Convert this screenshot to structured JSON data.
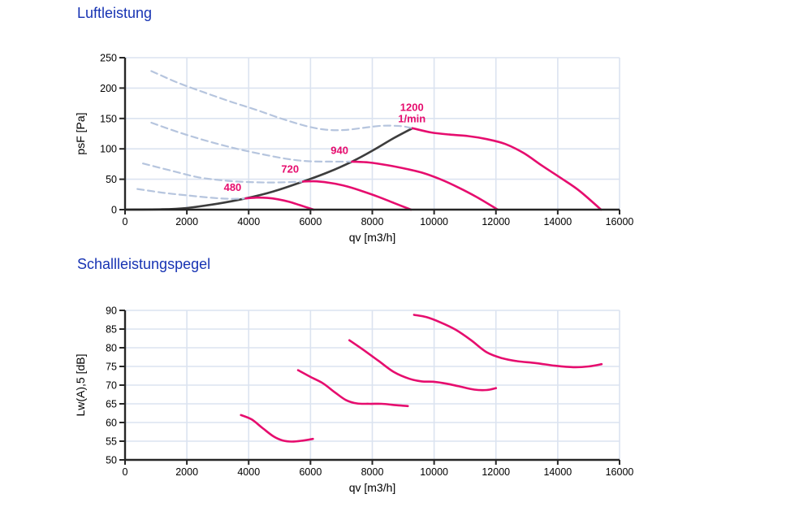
{
  "colors": {
    "title": "#1733b3",
    "magenta": "#e60d6e",
    "dark": "#3d3d3d",
    "lightblue": "#b6c5de",
    "grid": "#dbe3f0",
    "axis": "#262626",
    "tick_text": "#000000"
  },
  "chart_data": [
    {
      "type": "line",
      "title": "Luftleistung",
      "xlabel": "qv [m3/h]",
      "ylabel": "psF [Pa]",
      "xlim": [
        0,
        16000
      ],
      "ylim": [
        0,
        250
      ],
      "xticks": [
        0,
        2000,
        4000,
        6000,
        8000,
        10000,
        12000,
        14000,
        16000
      ],
      "yticks": [
        0,
        50,
        100,
        150,
        200,
        250
      ],
      "grid": true,
      "legend": "none",
      "series": [
        {
          "name": "system-limit-curve",
          "style": "solid",
          "color": "dark",
          "width": 2.6,
          "points": [
            [
              0,
              0
            ],
            [
              1200,
              0.5
            ],
            [
              2000,
              2.7
            ],
            [
              3000,
              9.8
            ],
            [
              3900,
              18.4
            ],
            [
              4800,
              29.9
            ],
            [
              5760,
              46.3
            ],
            [
              6600,
              62.1
            ],
            [
              7340,
              79
            ],
            [
              8000,
              96.9
            ],
            [
              8700,
              117.8
            ],
            [
              9300,
              134
            ]
          ]
        },
        {
          "name": "fan-480-unstable-dashed",
          "style": "dashed",
          "color": "lightblue",
          "width": 2.2,
          "points": [
            [
              400,
              34
            ],
            [
              1200,
              28
            ],
            [
              2000,
              23.5
            ],
            [
              2800,
              19.5
            ],
            [
              3400,
              17.8
            ],
            [
              3900,
              18.4
            ]
          ]
        },
        {
          "name": "fan-720-unstable-dashed",
          "style": "dashed",
          "color": "lightblue",
          "width": 2.2,
          "points": [
            [
              580,
              76
            ],
            [
              1500,
              64
            ],
            [
              2400,
              53
            ],
            [
              3300,
              47.5
            ],
            [
              4200,
              45
            ],
            [
              5000,
              44.8
            ],
            [
              5760,
              46.3
            ]
          ]
        },
        {
          "name": "fan-940-unstable-dashed",
          "style": "dashed",
          "color": "lightblue",
          "width": 2.2,
          "points": [
            [
              850,
              143
            ],
            [
              1750,
              127
            ],
            [
              2650,
              113
            ],
            [
              3550,
              101
            ],
            [
              4450,
              91
            ],
            [
              5300,
              83
            ],
            [
              5950,
              79.5
            ],
            [
              6650,
              79
            ],
            [
              7340,
              79
            ]
          ]
        },
        {
          "name": "fan-1200-unstable-dashed",
          "style": "dashed",
          "color": "lightblue",
          "width": 2.2,
          "points": [
            [
              850,
              228
            ],
            [
              1700,
              209
            ],
            [
              2550,
              193
            ],
            [
              3400,
              178
            ],
            [
              4250,
              164
            ],
            [
              5100,
              149
            ],
            [
              5900,
              137
            ],
            [
              6500,
              131.5
            ],
            [
              7100,
              131
            ],
            [
              7700,
              134.5
            ],
            [
              8300,
              138
            ],
            [
              8900,
              137.5
            ],
            [
              9300,
              134
            ]
          ]
        },
        {
          "name": "fan-480",
          "style": "solid",
          "color": "magenta",
          "width": 2.6,
          "points": [
            [
              3900,
              18.4
            ],
            [
              4250,
              19.8
            ],
            [
              4600,
              19.3
            ],
            [
              4950,
              17
            ],
            [
              5300,
              13
            ],
            [
              5650,
              7.5
            ],
            [
              6100,
              0
            ]
          ]
        },
        {
          "name": "fan-720",
          "style": "solid",
          "color": "magenta",
          "width": 2.6,
          "points": [
            [
              5760,
              46.3
            ],
            [
              6200,
              46.5
            ],
            [
              6700,
              43.5
            ],
            [
              7200,
              38
            ],
            [
              7700,
              30
            ],
            [
              8200,
              21
            ],
            [
              8700,
              11
            ],
            [
              9250,
              0
            ]
          ]
        },
        {
          "name": "fan-940",
          "style": "solid",
          "color": "magenta",
          "width": 2.6,
          "points": [
            [
              7340,
              79
            ],
            [
              7900,
              77.5
            ],
            [
              8500,
              73
            ],
            [
              9100,
              67
            ],
            [
              9600,
              61
            ],
            [
              10200,
              50
            ],
            [
              10800,
              36
            ],
            [
              11400,
              20
            ],
            [
              12060,
              0
            ]
          ]
        },
        {
          "name": "fan-1200",
          "style": "solid",
          "color": "magenta",
          "width": 2.6,
          "points": [
            [
              9300,
              134
            ],
            [
              9900,
              127
            ],
            [
              10500,
              123.5
            ],
            [
              11100,
              121
            ],
            [
              11700,
              116
            ],
            [
              12300,
              108
            ],
            [
              12900,
              93
            ],
            [
              13500,
              72
            ],
            [
              14100,
              52
            ],
            [
              14700,
              31
            ],
            [
              15400,
              0
            ]
          ]
        }
      ],
      "annotations": [
        {
          "text": "480",
          "x": 3480,
          "y": 36
        },
        {
          "text": "720",
          "x": 5340,
          "y": 66
        },
        {
          "text": "940",
          "x": 6940,
          "y": 97
        },
        {
          "text": "1200",
          "x": 9280,
          "y": 168
        },
        {
          "text": "1/min",
          "x": 9280,
          "y": 149
        }
      ]
    },
    {
      "type": "line",
      "title": "Schallleistungspegel",
      "xlabel": "qv [m3/h]",
      "ylabel": "Lw(A),5 [dB]",
      "xlim": [
        0,
        16000
      ],
      "ylim": [
        50,
        90
      ],
      "xticks": [
        0,
        2000,
        4000,
        6000,
        8000,
        10000,
        12000,
        14000,
        16000
      ],
      "yticks": [
        50,
        55,
        60,
        65,
        70,
        75,
        80,
        85,
        90
      ],
      "grid": true,
      "legend": "none",
      "series": [
        {
          "name": "noise-480",
          "style": "solid",
          "color": "magenta",
          "width": 2.6,
          "points": [
            [
              3750,
              62
            ],
            [
              4100,
              60.8
            ],
            [
              4450,
              58.5
            ],
            [
              4800,
              56.3
            ],
            [
              5100,
              55.2
            ],
            [
              5400,
              54.9
            ],
            [
              5700,
              55.1
            ],
            [
              6080,
              55.6
            ]
          ]
        },
        {
          "name": "noise-720",
          "style": "solid",
          "color": "magenta",
          "width": 2.6,
          "points": [
            [
              5600,
              74
            ],
            [
              6000,
              72.2
            ],
            [
              6400,
              70.5
            ],
            [
              6800,
              68
            ],
            [
              7150,
              66
            ],
            [
              7500,
              65.1
            ],
            [
              7900,
              65
            ],
            [
              8300,
              65
            ],
            [
              8700,
              64.7
            ],
            [
              9150,
              64.4
            ]
          ]
        },
        {
          "name": "noise-940",
          "style": "solid",
          "color": "magenta",
          "width": 2.6,
          "points": [
            [
              7260,
              82
            ],
            [
              7700,
              79.5
            ],
            [
              8200,
              76.5
            ],
            [
              8700,
              73.5
            ],
            [
              9200,
              71.7
            ],
            [
              9600,
              71
            ],
            [
              10000,
              70.9
            ],
            [
              10400,
              70.4
            ],
            [
              10800,
              69.7
            ],
            [
              11300,
              68.8
            ],
            [
              11700,
              68.7
            ],
            [
              12000,
              69.2
            ]
          ]
        },
        {
          "name": "noise-1200",
          "style": "solid",
          "color": "magenta",
          "width": 2.6,
          "points": [
            [
              9350,
              88.8
            ],
            [
              9750,
              88.2
            ],
            [
              10200,
              86.8
            ],
            [
              10700,
              84.8
            ],
            [
              11200,
              82
            ],
            [
              11700,
              78.8
            ],
            [
              12200,
              77.2
            ],
            [
              12700,
              76.4
            ],
            [
              13300,
              75.9
            ],
            [
              13900,
              75.2
            ],
            [
              14500,
              74.8
            ],
            [
              15000,
              75
            ],
            [
              15420,
              75.6
            ]
          ]
        }
      ],
      "annotations": []
    }
  ]
}
